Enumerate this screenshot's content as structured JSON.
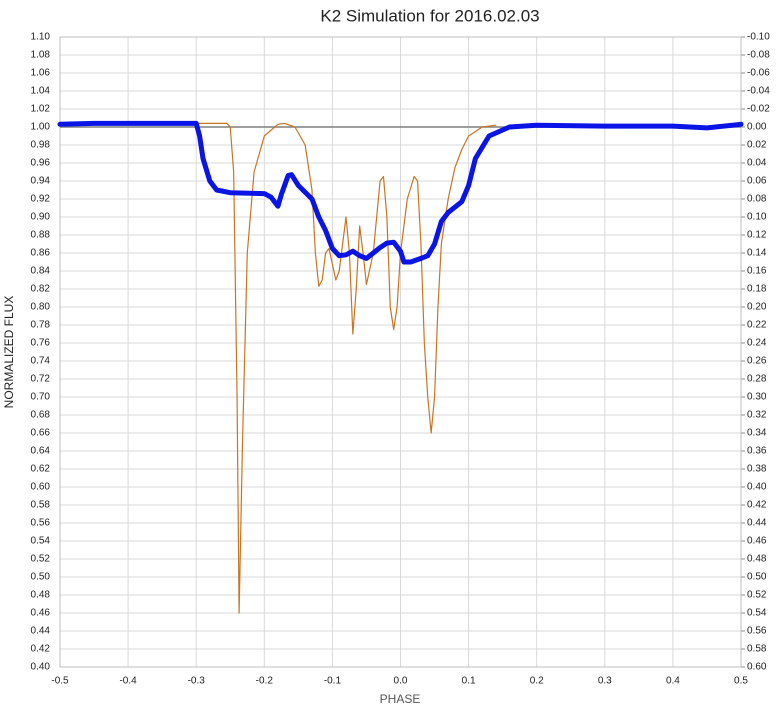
{
  "chart_data": {
    "type": "line",
    "title": "K2 Simulation for 2016.02.03",
    "x_label": "PHASE",
    "y_label": "NORMALIZED FLUX",
    "xlim": [
      -0.5,
      0.5
    ],
    "xticks": [
      -0.5,
      -0.4,
      -0.3,
      -0.2,
      -0.1,
      {
        "value": 0,
        "label": "0.0"
      },
      0.1,
      0.2,
      0.3,
      0.4,
      0.5
    ],
    "ylim": [
      0.4,
      1.1
    ],
    "yticks": [
      {
        "value": 1.1,
        "label": "1.10"
      },
      {
        "value": 1.08,
        "label": "1.08"
      },
      {
        "value": 1.06,
        "label": "1.06"
      },
      {
        "value": 1.04,
        "label": "1.04"
      },
      {
        "value": 1.02,
        "label": "1.02"
      },
      {
        "value": 1.0,
        "label": "1.00"
      },
      {
        "value": 0.98,
        "label": "0.98"
      },
      {
        "value": 0.96,
        "label": "0.96"
      },
      {
        "value": 0.94,
        "label": "0.94"
      },
      {
        "value": 0.92,
        "label": "0.92"
      },
      {
        "value": 0.9,
        "label": "0.90"
      },
      {
        "value": 0.88,
        "label": "0.88"
      },
      {
        "value": 0.86,
        "label": "0.86"
      },
      {
        "value": 0.84,
        "label": "0.84"
      },
      {
        "value": 0.82,
        "label": "0.82"
      },
      {
        "value": 0.8,
        "label": "0.80"
      },
      {
        "value": 0.78,
        "label": "0.78"
      },
      {
        "value": 0.76,
        "label": "0.76"
      },
      {
        "value": 0.74,
        "label": "0.74"
      },
      {
        "value": 0.72,
        "label": "0.72"
      },
      {
        "value": 0.7,
        "label": "0.70"
      },
      {
        "value": 0.68,
        "label": "0.68"
      },
      {
        "value": 0.66,
        "label": "0.66"
      },
      {
        "value": 0.64,
        "label": "0.64"
      },
      {
        "value": 0.62,
        "label": "0.62"
      },
      {
        "value": 0.6,
        "label": "0.60"
      },
      {
        "value": 0.58,
        "label": "0.58"
      },
      {
        "value": 0.56,
        "label": "0.56"
      },
      {
        "value": 0.54,
        "label": "0.54"
      },
      {
        "value": 0.52,
        "label": "0.52"
      },
      {
        "value": 0.5,
        "label": "0.50"
      },
      {
        "value": 0.48,
        "label": "0.48"
      },
      {
        "value": 0.46,
        "label": "0.46"
      },
      {
        "value": 0.44,
        "label": "0.44"
      },
      {
        "value": 0.42,
        "label": "0.42"
      },
      {
        "value": 0.4,
        "label": "0.40"
      }
    ],
    "y2lim": [
      0.6,
      -0.1
    ],
    "y2ticks": [
      {
        "value": -0.1,
        "label": "-0.10"
      },
      {
        "value": -0.08,
        "label": "-0.08"
      },
      {
        "value": -0.06,
        "label": "-0.06"
      },
      {
        "value": -0.04,
        "label": "-0.04"
      },
      {
        "value": -0.02,
        "label": "-0.02"
      },
      {
        "value": 0,
        "label": "0.00"
      },
      {
        "value": 0.02,
        "label": "0.02"
      },
      {
        "value": 0.04,
        "label": "0.04"
      },
      {
        "value": 0.06,
        "label": "0.06"
      },
      {
        "value": 0.08,
        "label": "0.08"
      },
      {
        "value": 0.1,
        "label": "0.10"
      },
      {
        "value": 0.12,
        "label": "0.12"
      },
      {
        "value": 0.14,
        "label": "0.14"
      },
      {
        "value": 0.16,
        "label": "0.16"
      },
      {
        "value": 0.18,
        "label": "0.18"
      },
      {
        "value": 0.2,
        "label": "0.20"
      },
      {
        "value": 0.22,
        "label": "0.22"
      },
      {
        "value": 0.24,
        "label": "0.24"
      },
      {
        "value": 0.26,
        "label": "0.26"
      },
      {
        "value": 0.28,
        "label": "0.28"
      },
      {
        "value": 0.3,
        "label": "0.30"
      },
      {
        "value": 0.32,
        "label": "0.32"
      },
      {
        "value": 0.34,
        "label": "0.34"
      },
      {
        "value": 0.36,
        "label": "0.36"
      },
      {
        "value": 0.38,
        "label": "0.38"
      },
      {
        "value": 0.4,
        "label": "0.40"
      },
      {
        "value": 0.42,
        "label": "0.42"
      },
      {
        "value": 0.44,
        "label": "0.44"
      },
      {
        "value": 0.46,
        "label": "0.46"
      },
      {
        "value": 0.48,
        "label": "0.48"
      },
      {
        "value": 0.5,
        "label": "0.50"
      },
      {
        "value": 0.52,
        "label": "0.52"
      },
      {
        "value": 0.54,
        "label": "0.54"
      },
      {
        "value": 0.56,
        "label": "0.56"
      },
      {
        "value": 0.58,
        "label": "0.58"
      },
      {
        "value": 0.6,
        "label": "0.60"
      }
    ],
    "grid": true,
    "series": [
      {
        "color": "#c87522",
        "width": 1.2,
        "x": [
          -0.3,
          -0.255,
          -0.25,
          -0.245,
          -0.24,
          -0.237,
          -0.232,
          -0.225,
          -0.215,
          -0.2,
          -0.18,
          -0.17,
          -0.155,
          -0.14,
          -0.13,
          -0.125,
          -0.12,
          -0.115,
          -0.11,
          -0.105,
          -0.095,
          -0.09,
          -0.08,
          -0.075,
          -0.07,
          -0.065,
          -0.06,
          -0.055,
          -0.05,
          -0.04,
          -0.03,
          -0.025,
          -0.02,
          -0.015,
          -0.01,
          -0.005,
          0.0,
          0.01,
          0.02,
          0.025,
          0.03,
          0.035,
          0.04,
          0.045,
          0.05,
          0.055,
          0.06,
          0.07,
          0.08,
          0.09,
          0.1,
          0.12,
          0.14
        ],
        "values": [
          1.004,
          1.004,
          1.0,
          0.95,
          0.7,
          0.46,
          0.65,
          0.86,
          0.95,
          0.99,
          1.003,
          1.004,
          1.0,
          0.98,
          0.93,
          0.86,
          0.823,
          0.83,
          0.86,
          0.865,
          0.83,
          0.84,
          0.9,
          0.86,
          0.77,
          0.82,
          0.89,
          0.86,
          0.825,
          0.86,
          0.94,
          0.945,
          0.9,
          0.8,
          0.775,
          0.8,
          0.86,
          0.92,
          0.945,
          0.94,
          0.87,
          0.76,
          0.7,
          0.66,
          0.7,
          0.8,
          0.87,
          0.92,
          0.955,
          0.975,
          0.99,
          1.0,
          1.002
        ]
      },
      {
        "color": "#0a14e6",
        "width": 5,
        "x": [
          -0.5,
          -0.45,
          -0.3,
          -0.295,
          -0.29,
          -0.28,
          -0.27,
          -0.25,
          -0.2,
          -0.19,
          -0.18,
          -0.175,
          -0.165,
          -0.16,
          -0.15,
          -0.13,
          -0.12,
          -0.11,
          -0.1,
          -0.09,
          -0.08,
          -0.07,
          -0.06,
          -0.05,
          -0.04,
          -0.03,
          -0.02,
          -0.01,
          0.0,
          0.005,
          0.015,
          0.03,
          0.04,
          0.05,
          0.06,
          0.07,
          0.09,
          0.1,
          0.11,
          0.13,
          0.16,
          0.2,
          0.3,
          0.4,
          0.45,
          0.5
        ],
        "values": [
          1.003,
          1.004,
          1.004,
          0.99,
          0.965,
          0.94,
          0.93,
          0.927,
          0.926,
          0.922,
          0.912,
          0.925,
          0.946,
          0.947,
          0.935,
          0.92,
          0.9,
          0.885,
          0.865,
          0.857,
          0.858,
          0.862,
          0.857,
          0.854,
          0.86,
          0.866,
          0.871,
          0.872,
          0.862,
          0.85,
          0.85,
          0.854,
          0.857,
          0.87,
          0.895,
          0.905,
          0.917,
          0.935,
          0.965,
          0.99,
          1.0,
          1.002,
          1.001,
          1.001,
          0.999,
          1.003
        ]
      }
    ]
  }
}
